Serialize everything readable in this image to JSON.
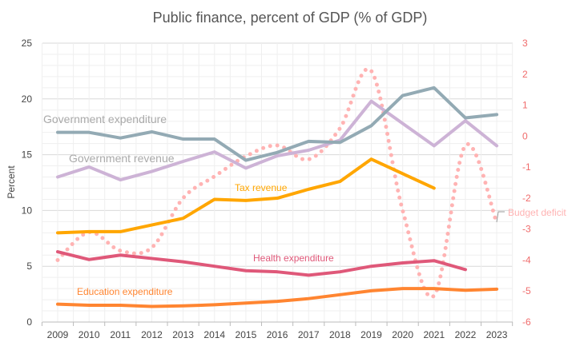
{
  "chart_data": {
    "type": "line",
    "title": "Public finance, percent of GDP (% of GDP)",
    "xlabel": "",
    "ylabel": "Percent",
    "ylim": [
      0,
      25
    ],
    "y2lim": [
      -6,
      3
    ],
    "yticks": [
      "0",
      "5",
      "10",
      "15",
      "20",
      "25"
    ],
    "y2ticks": [
      "-6",
      "-5",
      "-4",
      "-3",
      "-2",
      "-1",
      "0",
      "1",
      "2",
      "3"
    ],
    "grid": true,
    "x": [
      "2009",
      "2010",
      "2011",
      "2012",
      "2013",
      "2014",
      "2015",
      "2016",
      "2017",
      "2018",
      "2019",
      "2020",
      "2021",
      "2022",
      "2023"
    ],
    "series": [
      {
        "name": "Government expenditure",
        "axis": "left",
        "color": "#93aab4",
        "style": "solid",
        "values": [
          17.0,
          17.0,
          16.5,
          17.05,
          16.4,
          16.4,
          14.5,
          15.2,
          16.2,
          16.1,
          17.6,
          20.3,
          21.0,
          18.3,
          18.6
        ]
      },
      {
        "name": "Government revenue",
        "axis": "left",
        "color": "#cdb3d6",
        "style": "solid",
        "values": [
          13.0,
          13.9,
          12.75,
          13.5,
          14.4,
          15.25,
          13.8,
          14.9,
          15.4,
          16.3,
          19.8,
          17.8,
          15.8,
          18.05,
          15.8
        ]
      },
      {
        "name": "Tax revenue",
        "axis": "left",
        "color": "#ffa600",
        "style": "solid",
        "values": [
          8.0,
          8.1,
          8.1,
          8.7,
          9.3,
          11.0,
          10.9,
          11.1,
          11.9,
          12.6,
          14.6,
          13.3,
          12.0,
          null,
          null
        ]
      },
      {
        "name": "Health expenditure",
        "axis": "left",
        "color": "#df5879",
        "style": "solid",
        "values": [
          6.3,
          5.6,
          6.0,
          5.7,
          5.4,
          5.0,
          4.6,
          4.5,
          4.2,
          4.5,
          5.0,
          5.3,
          5.5,
          4.7,
          null
        ]
      },
      {
        "name": "Education expenditure",
        "axis": "left",
        "color": "#ff8531",
        "style": "solid",
        "values": [
          1.6,
          1.5,
          1.5,
          1.4,
          1.45,
          1.55,
          1.7,
          1.85,
          2.1,
          2.45,
          2.8,
          3.0,
          3.0,
          2.85,
          2.95
        ]
      },
      {
        "name": "Budget deficit",
        "axis": "right",
        "color": "#ffb3b3",
        "style": "dotted",
        "values": [
          -4.0,
          -3.1,
          -3.7,
          -3.6,
          -2.0,
          -1.3,
          -0.65,
          -0.3,
          -0.75,
          0.25,
          2.1,
          -2.4,
          -5.15,
          -0.3,
          -2.8
        ]
      }
    ]
  }
}
